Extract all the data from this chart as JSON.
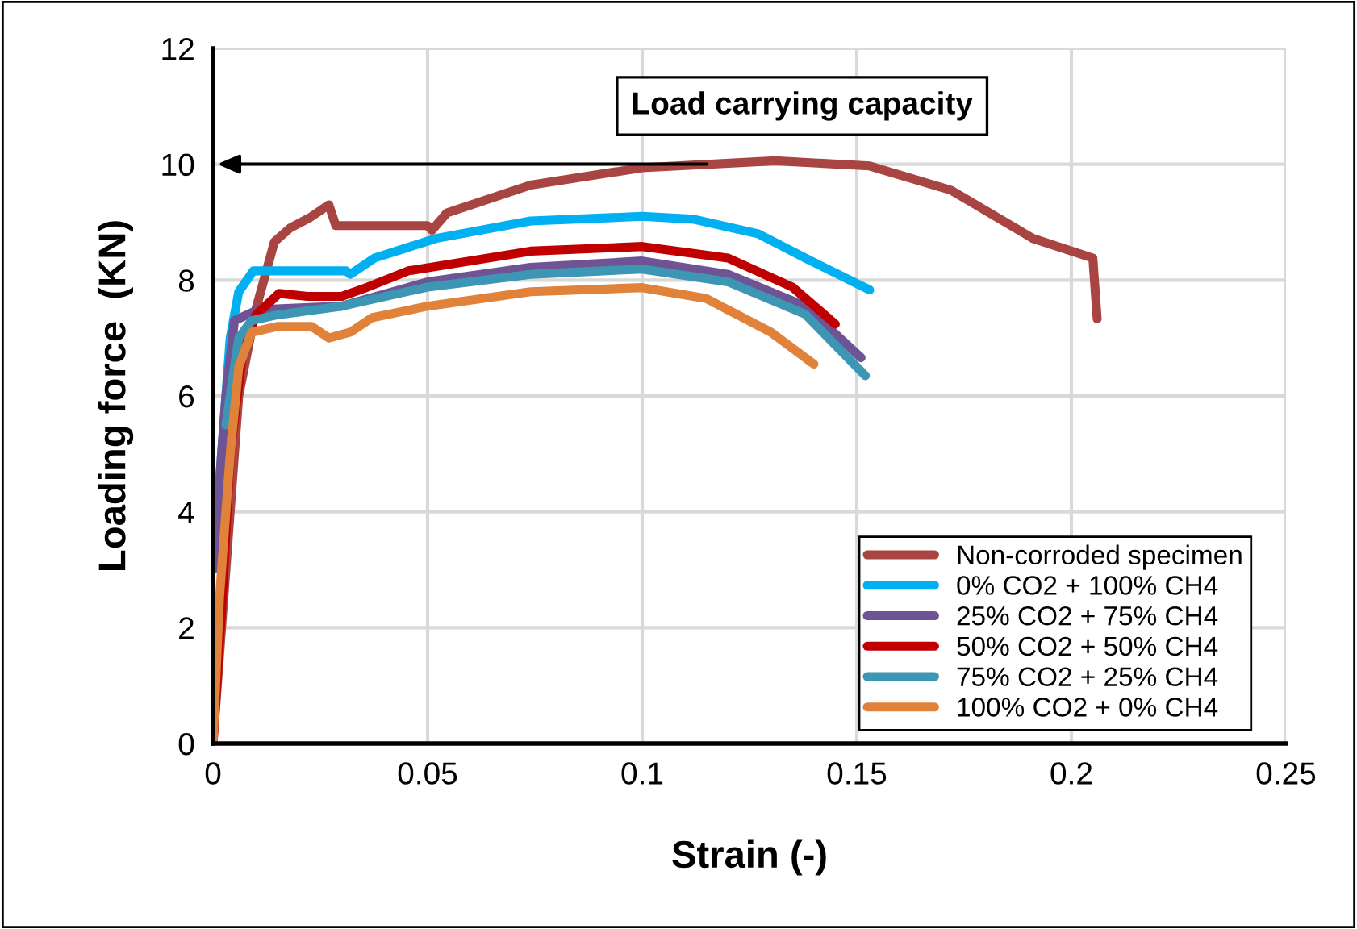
{
  "chart_data": {
    "type": "line",
    "xlabel": "Strain (-)",
    "ylabel": "Loading force  (KN)",
    "xlim": [
      0,
      0.25
    ],
    "xticks": [
      0,
      0.05,
      0.1,
      0.15,
      0.2,
      0.25
    ],
    "ylim": [
      0,
      12
    ],
    "yticks": [
      0,
      2,
      4,
      6,
      8,
      10,
      12
    ],
    "grid": true,
    "legend": "bottom right",
    "marker": "none",
    "line_style": "solid",
    "annotations": [
      "Load carrying capacity"
    ],
    "series": [
      {
        "name": "Non-corroded specimen",
        "color": "#a84442",
        "x": [
          0,
          0.003,
          0.006,
          0.01,
          0.0143,
          0.018,
          0.0226,
          0.027,
          0.0286,
          0.05,
          0.051,
          0.0545,
          0.074,
          0.1,
          0.131,
          0.153,
          0.172,
          0.191,
          0.205,
          0.206
        ],
        "values": [
          0,
          3,
          6,
          7.5,
          8.66,
          8.9,
          9.08,
          9.3,
          8.94,
          8.94,
          8.86,
          9.16,
          9.64,
          9.94,
          10.06,
          9.97,
          9.55,
          8.72,
          8.38,
          7.33
        ]
      },
      {
        "name": "0% CO2 + 100% CH4",
        "color": "#00b0f0",
        "x": [
          0,
          0.004,
          0.006,
          0.0094,
          0.031,
          0.032,
          0.0376,
          0.052,
          0.074,
          0.1,
          0.112,
          0.127,
          0.138,
          0.153
        ],
        "values": [
          3,
          7,
          7.8,
          8.16,
          8.16,
          8.1,
          8.38,
          8.72,
          9.02,
          9.1,
          9.05,
          8.8,
          8.38,
          7.83
        ]
      },
      {
        "name": "25% CO2 + 75% CH4",
        "color": "#6e5494",
        "x": [
          0,
          0.003,
          0.005,
          0.0105,
          0.03,
          0.05,
          0.074,
          0.1,
          0.12,
          0.138,
          0.151
        ],
        "values": [
          3,
          6,
          7.3,
          7.49,
          7.55,
          7.97,
          8.22,
          8.33,
          8.1,
          7.55,
          6.66
        ]
      },
      {
        "name": "50% CO2 + 50% CH4",
        "color": "#c00000",
        "x": [
          0,
          0.002,
          0.004,
          0.007,
          0.01,
          0.0154,
          0.022,
          0.03,
          0.035,
          0.0455,
          0.074,
          0.1,
          0.12,
          0.135,
          0.145
        ],
        "values": [
          0,
          2.3,
          5,
          6.8,
          7.4,
          7.77,
          7.72,
          7.72,
          7.85,
          8.16,
          8.5,
          8.58,
          8.38,
          7.88,
          7.24
        ]
      },
      {
        "name": "75% CO2 + 25% CH4",
        "color": "#3c96b4",
        "x": [
          0.003,
          0.006,
          0.009,
          0.015,
          0.03,
          0.05,
          0.074,
          0.1,
          0.12,
          0.138,
          0.152
        ],
        "values": [
          5.5,
          7,
          7.3,
          7.4,
          7.55,
          7.88,
          8.1,
          8.19,
          7.97,
          7.41,
          6.35
        ]
      },
      {
        "name": "100% CO2 + 0% CH4",
        "color": "#e0823a",
        "x": [
          0,
          0.0015,
          0.004,
          0.006,
          0.009,
          0.015,
          0.023,
          0.027,
          0.032,
          0.037,
          0.05,
          0.074,
          0.1,
          0.115,
          0.13,
          0.14
        ],
        "values": [
          0,
          2.5,
          5,
          6.5,
          7.1,
          7.2,
          7.2,
          7,
          7.1,
          7.35,
          7.55,
          7.8,
          7.87,
          7.68,
          7.1,
          6.55
        ]
      }
    ]
  }
}
